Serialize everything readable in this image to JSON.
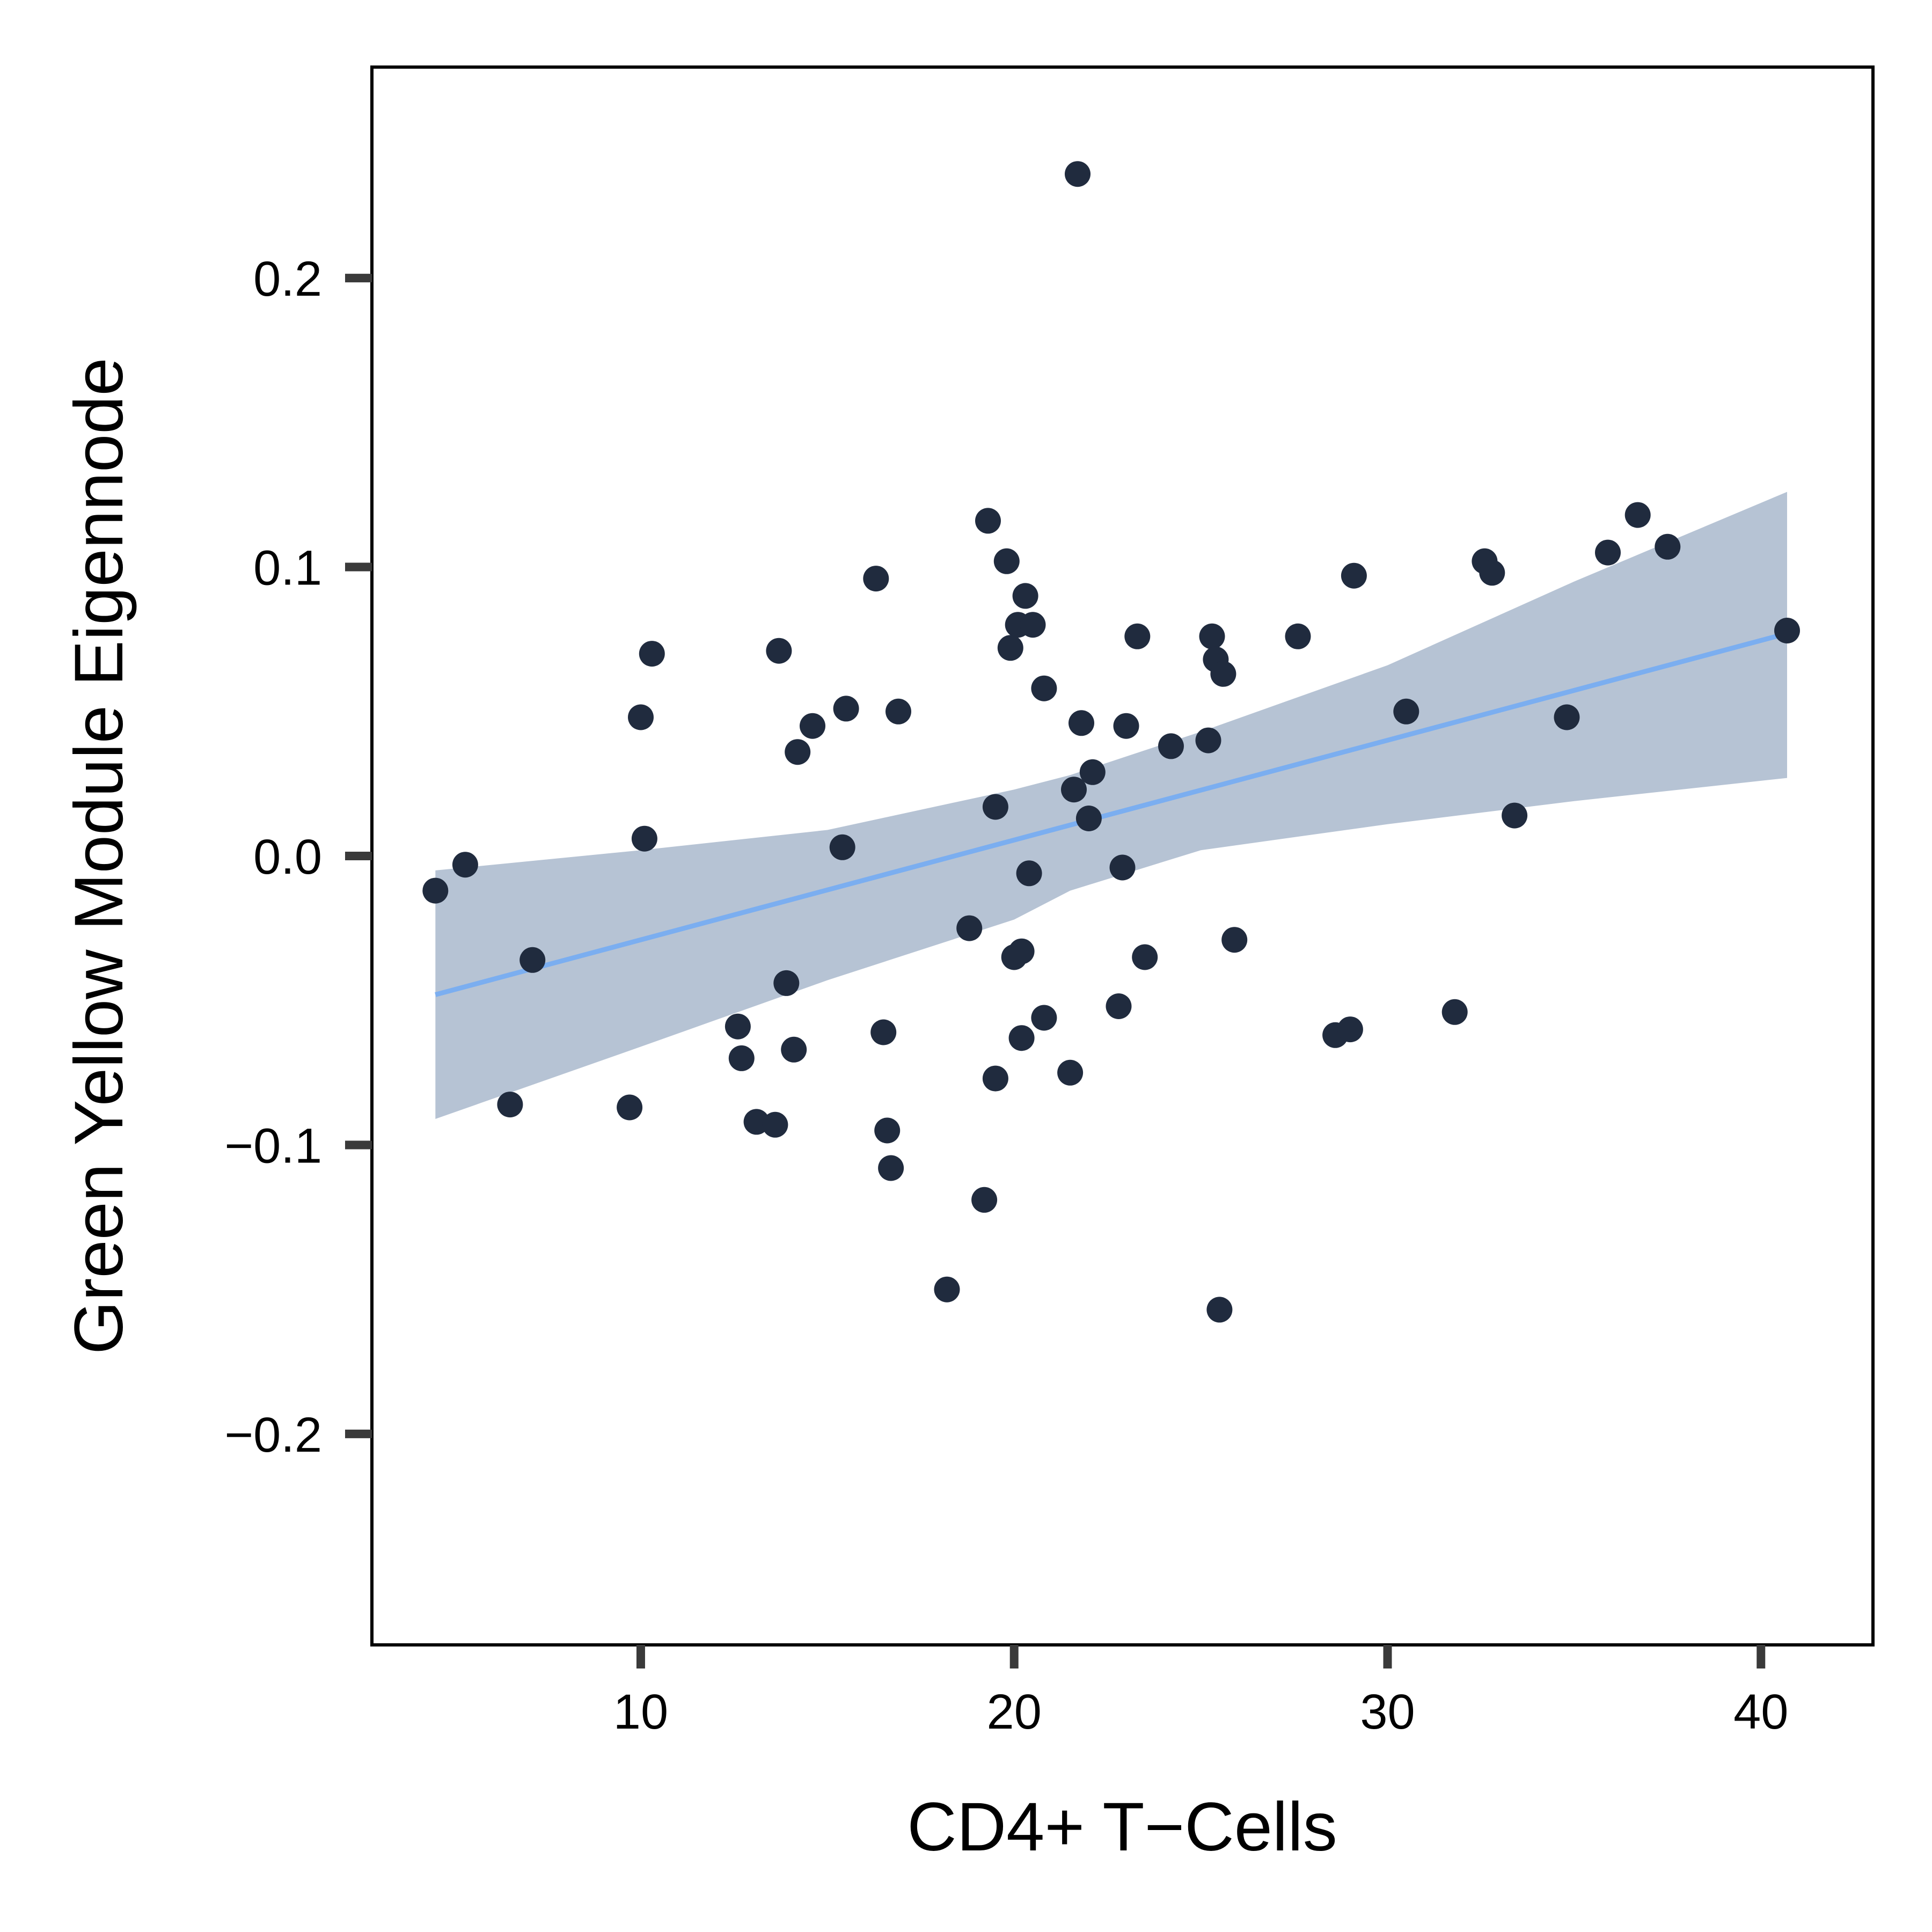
{
  "chart_data": {
    "type": "scatter",
    "title": "",
    "xlabel": "CD4+ T−Cells",
    "ylabel": "Green Yellow Module Eigennode",
    "xlim": [
      2.8,
      43.0
    ],
    "ylim": [
      -0.273,
      0.273
    ],
    "x_ticks": [
      10,
      20,
      30,
      40
    ],
    "x_tick_labels": [
      "10",
      "20",
      "30",
      "40"
    ],
    "y_ticks": [
      -0.2,
      -0.1,
      0.0,
      0.1,
      0.2
    ],
    "y_tick_labels": [
      "−0.2",
      "−0.1",
      "0.0",
      "0.1",
      "0.2"
    ],
    "grid": false,
    "colors": {
      "points": "#202b3e",
      "regression_line": "#7baef0",
      "confidence_band": "#b6c3d4",
      "axis": "#000000",
      "ticks": "#3a3a3a"
    },
    "regression": {
      "x": [
        4.5,
        40.7
      ],
      "y": [
        -0.048,
        0.077
      ],
      "ci_x": [
        4.5,
        10,
        15,
        20,
        21.5,
        25,
        30,
        35,
        40.7
      ],
      "ci_lower": [
        -0.091,
        -0.066,
        -0.043,
        -0.022,
        -0.012,
        0.002,
        0.011,
        0.019,
        0.027
      ],
      "ci_upper": [
        -0.005,
        0.002,
        0.009,
        0.023,
        0.028,
        0.043,
        0.066,
        0.095,
        0.126
      ]
    },
    "series": [
      {
        "name": "samples",
        "points": [
          {
            "x": 4.5,
            "y": -0.012
          },
          {
            "x": 5.3,
            "y": -0.003
          },
          {
            "x": 6.5,
            "y": -0.086
          },
          {
            "x": 7.1,
            "y": -0.036
          },
          {
            "x": 9.7,
            "y": -0.087
          },
          {
            "x": 10.0,
            "y": 0.048
          },
          {
            "x": 10.1,
            "y": 0.006
          },
          {
            "x": 10.3,
            "y": 0.07
          },
          {
            "x": 12.6,
            "y": -0.059
          },
          {
            "x": 12.7,
            "y": -0.07
          },
          {
            "x": 13.1,
            "y": -0.092
          },
          {
            "x": 13.6,
            "y": -0.093
          },
          {
            "x": 13.7,
            "y": 0.071
          },
          {
            "x": 13.9,
            "y": -0.044
          },
          {
            "x": 14.1,
            "y": -0.067
          },
          {
            "x": 14.2,
            "y": 0.036
          },
          {
            "x": 14.6,
            "y": 0.045
          },
          {
            "x": 15.4,
            "y": 0.003
          },
          {
            "x": 15.5,
            "y": 0.051
          },
          {
            "x": 16.3,
            "y": 0.096
          },
          {
            "x": 16.5,
            "y": -0.061
          },
          {
            "x": 16.6,
            "y": -0.095
          },
          {
            "x": 16.7,
            "y": -0.108
          },
          {
            "x": 16.9,
            "y": 0.05
          },
          {
            "x": 18.2,
            "y": -0.15
          },
          {
            "x": 18.8,
            "y": -0.025
          },
          {
            "x": 19.2,
            "y": -0.119
          },
          {
            "x": 19.3,
            "y": 0.116
          },
          {
            "x": 19.5,
            "y": 0.017
          },
          {
            "x": 19.5,
            "y": -0.077
          },
          {
            "x": 19.8,
            "y": 0.102
          },
          {
            "x": 19.9,
            "y": 0.072
          },
          {
            "x": 20.0,
            "y": -0.035
          },
          {
            "x": 20.1,
            "y": 0.08
          },
          {
            "x": 20.2,
            "y": -0.033
          },
          {
            "x": 20.2,
            "y": -0.063
          },
          {
            "x": 20.3,
            "y": 0.09
          },
          {
            "x": 20.4,
            "y": -0.006
          },
          {
            "x": 20.5,
            "y": 0.08
          },
          {
            "x": 20.8,
            "y": 0.058
          },
          {
            "x": 20.8,
            "y": -0.056
          },
          {
            "x": 21.5,
            "y": -0.075
          },
          {
            "x": 21.6,
            "y": 0.023
          },
          {
            "x": 21.7,
            "y": 0.236
          },
          {
            "x": 21.8,
            "y": 0.046
          },
          {
            "x": 22.0,
            "y": 0.013
          },
          {
            "x": 22.1,
            "y": 0.029
          },
          {
            "x": 22.8,
            "y": -0.052
          },
          {
            "x": 22.9,
            "y": -0.004
          },
          {
            "x": 23.0,
            "y": 0.045
          },
          {
            "x": 23.3,
            "y": 0.076
          },
          {
            "x": 23.5,
            "y": -0.035
          },
          {
            "x": 24.2,
            "y": 0.038
          },
          {
            "x": 25.2,
            "y": 0.04
          },
          {
            "x": 25.3,
            "y": 0.076
          },
          {
            "x": 25.4,
            "y": 0.068
          },
          {
            "x": 25.5,
            "y": -0.157
          },
          {
            "x": 25.6,
            "y": 0.063
          },
          {
            "x": 25.9,
            "y": -0.029
          },
          {
            "x": 27.6,
            "y": 0.076
          },
          {
            "x": 28.6,
            "y": -0.062
          },
          {
            "x": 29.0,
            "y": -0.06
          },
          {
            "x": 29.1,
            "y": 0.097
          },
          {
            "x": 30.5,
            "y": 0.05
          },
          {
            "x": 31.8,
            "y": -0.054
          },
          {
            "x": 32.6,
            "y": 0.102
          },
          {
            "x": 32.8,
            "y": 0.098
          },
          {
            "x": 33.4,
            "y": 0.014
          },
          {
            "x": 34.8,
            "y": 0.048
          },
          {
            "x": 35.9,
            "y": 0.105
          },
          {
            "x": 36.7,
            "y": 0.118
          },
          {
            "x": 37.5,
            "y": 0.107
          },
          {
            "x": 40.7,
            "y": 0.078
          }
        ]
      }
    ]
  }
}
